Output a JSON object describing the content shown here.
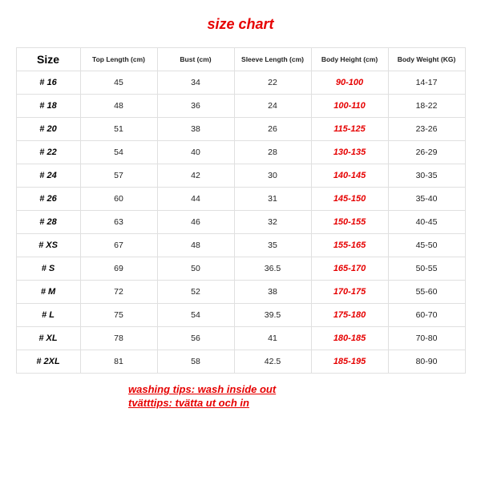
{
  "title": "size chart",
  "columns": [
    "Size",
    "Top Length (cm)",
    "Bust (cm)",
    "Sleeve Length (cm)",
    "Body Height (cm)",
    "Body Weight (KG)"
  ],
  "rows": [
    {
      "size": "# 16",
      "top": "45",
      "bust": "34",
      "sleeve": "22",
      "height": "90-100",
      "weight": "14-17"
    },
    {
      "size": "# 18",
      "top": "48",
      "bust": "36",
      "sleeve": "24",
      "height": "100-110",
      "weight": "18-22"
    },
    {
      "size": "# 20",
      "top": "51",
      "bust": "38",
      "sleeve": "26",
      "height": "115-125",
      "weight": "23-26"
    },
    {
      "size": "# 22",
      "top": "54",
      "bust": "40",
      "sleeve": "28",
      "height": "130-135",
      "weight": "26-29"
    },
    {
      "size": "# 24",
      "top": "57",
      "bust": "42",
      "sleeve": "30",
      "height": "140-145",
      "weight": "30-35"
    },
    {
      "size": "# 26",
      "top": "60",
      "bust": "44",
      "sleeve": "31",
      "height": "145-150",
      "weight": "35-40"
    },
    {
      "size": "# 28",
      "top": "63",
      "bust": "46",
      "sleeve": "32",
      "height": "150-155",
      "weight": "40-45"
    },
    {
      "size": "# XS",
      "top": "67",
      "bust": "48",
      "sleeve": "35",
      "height": "155-165",
      "weight": "45-50"
    },
    {
      "size": "# S",
      "top": "69",
      "bust": "50",
      "sleeve": "36.5",
      "height": "165-170",
      "weight": "50-55"
    },
    {
      "size": "# M",
      "top": "72",
      "bust": "52",
      "sleeve": "38",
      "height": "170-175",
      "weight": "55-60"
    },
    {
      "size": "# L",
      "top": "75",
      "bust": "54",
      "sleeve": "39.5",
      "height": "175-180",
      "weight": "60-70"
    },
    {
      "size": "# XL",
      "top": "78",
      "bust": "56",
      "sleeve": "41",
      "height": "180-185",
      "weight": "70-80"
    },
    {
      "size": "# 2XL",
      "top": "81",
      "bust": "58",
      "sleeve": "42.5",
      "height": "185-195",
      "weight": "80-90"
    }
  ],
  "tips": {
    "en": "washing tips: wash inside out",
    "sv": "tvätttips: tvätta ut och in"
  },
  "colors": {
    "accent": "#e60000",
    "border": "#e0e0e0",
    "text": "#222222",
    "background": "#ffffff"
  },
  "typography": {
    "title_fontsize": 18,
    "header_fontsize": 8.5,
    "cell_fontsize": 10.5,
    "size_fontsize": 11,
    "tip_fontsize": 13
  }
}
